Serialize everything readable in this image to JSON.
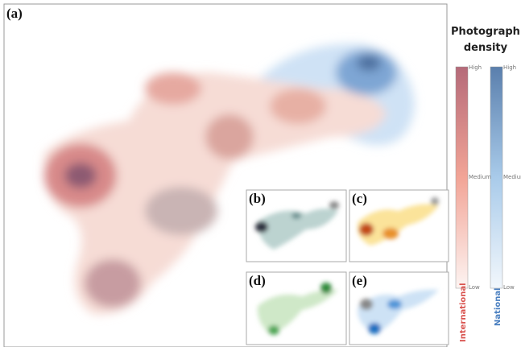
{
  "panels": {
    "main": "(a)",
    "insets": [
      "(b)",
      "(c)",
      "(d)",
      "(e)"
    ]
  },
  "legend": {
    "title": "Photograph density",
    "scales": [
      {
        "name": "International",
        "high": "High",
        "medium": "Medium",
        "low": "Low"
      },
      {
        "name": "National",
        "high": "High",
        "medium": "Medium",
        "low": "Low"
      }
    ]
  }
}
